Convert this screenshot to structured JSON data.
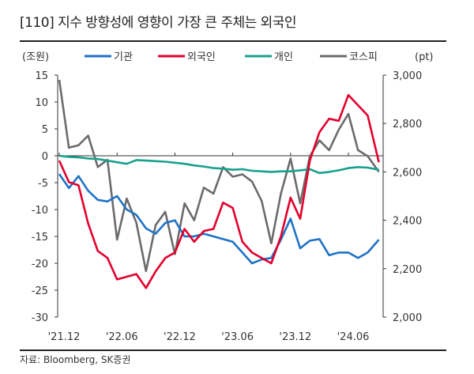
{
  "title": "[110] 지수 방향성에 영향이 가장 큰 주체는 외국인",
  "source": "자료: Bloomberg, SK증권",
  "chart_data": {
    "type": "line",
    "left_unit": "(조원)",
    "right_unit": "(pt)",
    "left_ylim": [
      -30,
      15
    ],
    "left_ticks": [
      "15",
      "10",
      "5",
      "0",
      "-5",
      "-10",
      "-15",
      "-20",
      "-25",
      "-30"
    ],
    "right_ylim": [
      2000,
      3000
    ],
    "right_ticks": [
      "3,000",
      "2,800",
      "2,600",
      "2,400",
      "2,200",
      "2,000"
    ],
    "x_ticks": [
      "'21.12",
      "'22.06",
      "'22.12",
      "'23.06",
      "'23.12",
      "'24.06"
    ],
    "legend_position": "top",
    "grid": false,
    "x": [
      "2021-12",
      "2022-01",
      "2022-02",
      "2022-03",
      "2022-04",
      "2022-05",
      "2022-06",
      "2022-07",
      "2022-08",
      "2022-09",
      "2022-10",
      "2022-11",
      "2022-12",
      "2023-01",
      "2023-02",
      "2023-03",
      "2023-04",
      "2023-05",
      "2023-06",
      "2023-07",
      "2023-08",
      "2023-09",
      "2023-10",
      "2023-11",
      "2023-12",
      "2024-01",
      "2024-02",
      "2024-03",
      "2024-04",
      "2024-05",
      "2024-06",
      "2024-07",
      "2024-08",
      "2024-09"
    ],
    "series": [
      {
        "name": "기관",
        "axis": "left",
        "color": "#1f72c6",
        "values": [
          -3.4,
          -6,
          -3.8,
          -6.5,
          -8.2,
          -8.5,
          -7.5,
          -10,
          -11,
          -13.5,
          -14.5,
          -12.5,
          -12,
          -15,
          -15,
          -14.5,
          -15,
          -15.5,
          -16,
          -18,
          -20,
          -19.3,
          -19,
          -15.6,
          -11.7,
          -17.2,
          -15.8,
          -15.5,
          -18.5,
          -18,
          -18,
          -19,
          -18,
          -15.6
        ]
      },
      {
        "name": "외국인",
        "axis": "left",
        "color": "#e2012d",
        "values": [
          -0.9,
          -4.9,
          -5.5,
          -12.6,
          -17.7,
          -19,
          -23,
          -22.5,
          -22,
          -24.6,
          -21.5,
          -19,
          -18,
          -13.6,
          -16,
          -14,
          -13.6,
          -8.7,
          -9.7,
          -16,
          -18,
          -19,
          -20,
          -15,
          -7.8,
          -11.7,
          -0.9,
          4.4,
          6.9,
          6.5,
          11.3,
          9.4,
          7.5,
          -1.2
        ]
      },
      {
        "name": "개인",
        "axis": "left",
        "color": "#17a08c",
        "values": [
          0,
          -0.2,
          -0.3,
          -0.5,
          -0.6,
          -0.9,
          -1.2,
          -1.5,
          -0.8,
          -0.9,
          -1,
          -1.1,
          -1.3,
          -1.5,
          -1.8,
          -2,
          -2.3,
          -2.4,
          -2.6,
          -2.5,
          -2.8,
          -2.9,
          -3,
          -2.9,
          -2.9,
          -2.7,
          -2.5,
          -3.2,
          -3,
          -2.7,
          -2.3,
          -2.1,
          -2.2,
          -2.6
        ]
      },
      {
        "name": "코스피",
        "axis": "right",
        "color": "#6b6b6b",
        "values": [
          2980,
          2700,
          2710,
          2750,
          2620,
          2650,
          2320,
          2490,
          2390,
          2190,
          2380,
          2435,
          2260,
          2470,
          2400,
          2535,
          2510,
          2620,
          2580,
          2590,
          2560,
          2480,
          2305,
          2510,
          2655,
          2470,
          2665,
          2730,
          2690,
          2775,
          2840,
          2690,
          2665,
          2600
        ]
      }
    ]
  }
}
